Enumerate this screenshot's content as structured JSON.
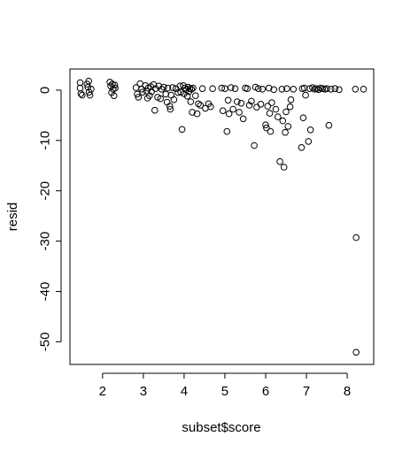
{
  "chart_data": {
    "type": "scatter",
    "title": "",
    "xlabel": "subset$score",
    "ylabel": "resid",
    "xticks": [
      2,
      3,
      4,
      5,
      6,
      7,
      8
    ],
    "yticks": [
      0,
      -10,
      -20,
      -30,
      -40,
      -50
    ],
    "xlim": [
      1.2,
      8.65
    ],
    "ylim": [
      -54.5,
      4.2
    ],
    "grid": false,
    "points": [
      [
        1.45,
        1.5
      ],
      [
        1.45,
        0.4
      ],
      [
        1.47,
        -0.7
      ],
      [
        1.5,
        -1.0
      ],
      [
        1.62,
        1.2
      ],
      [
        1.64,
        0.6
      ],
      [
        1.66,
        1.8
      ],
      [
        1.67,
        -0.4
      ],
      [
        1.69,
        -1.0
      ],
      [
        1.72,
        0.2
      ],
      [
        2.18,
        1.6
      ],
      [
        2.2,
        0.8
      ],
      [
        2.22,
        -0.5
      ],
      [
        2.24,
        1.2
      ],
      [
        2.26,
        0.2
      ],
      [
        2.28,
        -1.1
      ],
      [
        2.3,
        1.0
      ],
      [
        2.31,
        0.4
      ],
      [
        2.82,
        0.5
      ],
      [
        2.85,
        -0.8
      ],
      [
        2.88,
        -1.4
      ],
      [
        2.92,
        1.3
      ],
      [
        2.96,
        0.2
      ],
      [
        2.98,
        -0.4
      ],
      [
        3.05,
        0.9
      ],
      [
        3.08,
        -0.2
      ],
      [
        3.1,
        -1.6
      ],
      [
        3.12,
        0.4
      ],
      [
        3.15,
        -1.1
      ],
      [
        3.18,
        0.7
      ],
      [
        3.2,
        -0.3
      ],
      [
        3.25,
        1.1
      ],
      [
        3.28,
        -4.0
      ],
      [
        3.3,
        0.3
      ],
      [
        3.35,
        -1.4
      ],
      [
        3.38,
        0.8
      ],
      [
        3.42,
        -1.7
      ],
      [
        3.45,
        0.2
      ],
      [
        3.5,
        0.6
      ],
      [
        3.55,
        -0.8
      ],
      [
        3.58,
        -2.4
      ],
      [
        3.6,
        0.4
      ],
      [
        3.65,
        -3.2
      ],
      [
        3.66,
        -3.8
      ],
      [
        3.68,
        -1.0
      ],
      [
        3.72,
        0.5
      ],
      [
        3.75,
        -1.9
      ],
      [
        3.8,
        0.3
      ],
      [
        3.85,
        -0.5
      ],
      [
        3.9,
        0.8
      ],
      [
        3.92,
        -0.4
      ],
      [
        3.95,
        -7.8
      ],
      [
        3.98,
        0.9
      ],
      [
        4.0,
        -0.7
      ],
      [
        4.02,
        0.4
      ],
      [
        4.05,
        0.1
      ],
      [
        4.08,
        -1.2
      ],
      [
        4.1,
        0.6
      ],
      [
        4.12,
        -0.3
      ],
      [
        4.14,
        0.3
      ],
      [
        4.16,
        -2.3
      ],
      [
        4.18,
        0.2
      ],
      [
        4.2,
        -4.4
      ],
      [
        4.22,
        0.4
      ],
      [
        4.28,
        -1.1
      ],
      [
        4.32,
        -4.7
      ],
      [
        4.35,
        -2.7
      ],
      [
        4.4,
        -3.0
      ],
      [
        4.45,
        0.3
      ],
      [
        4.52,
        -3.6
      ],
      [
        4.6,
        -2.7
      ],
      [
        4.65,
        -3.3
      ],
      [
        4.7,
        0.3
      ],
      [
        4.92,
        0.4
      ],
      [
        4.95,
        -4.1
      ],
      [
        5.0,
        0.3
      ],
      [
        5.05,
        -8.2
      ],
      [
        5.08,
        -2.0
      ],
      [
        5.1,
        -4.7
      ],
      [
        5.15,
        0.5
      ],
      [
        5.2,
        -3.8
      ],
      [
        5.25,
        0.3
      ],
      [
        5.3,
        -2.3
      ],
      [
        5.35,
        -4.4
      ],
      [
        5.4,
        -2.6
      ],
      [
        5.45,
        -5.7
      ],
      [
        5.5,
        0.4
      ],
      [
        5.55,
        0.3
      ],
      [
        5.6,
        -3.0
      ],
      [
        5.65,
        -2.2
      ],
      [
        5.72,
        -11.0
      ],
      [
        5.75,
        0.6
      ],
      [
        5.78,
        -3.4
      ],
      [
        5.82,
        0.3
      ],
      [
        5.88,
        -2.8
      ],
      [
        5.92,
        0.2
      ],
      [
        6.0,
        -6.9
      ],
      [
        6.02,
        -7.5
      ],
      [
        6.05,
        -3.2
      ],
      [
        6.08,
        0.4
      ],
      [
        6.1,
        -4.6
      ],
      [
        6.12,
        -8.2
      ],
      [
        6.15,
        -2.5
      ],
      [
        6.2,
        0.1
      ],
      [
        6.25,
        -3.8
      ],
      [
        6.3,
        -5.3
      ],
      [
        6.35,
        -14.2
      ],
      [
        6.4,
        0.2
      ],
      [
        6.42,
        -6.1
      ],
      [
        6.45,
        -15.3
      ],
      [
        6.48,
        -8.4
      ],
      [
        6.5,
        -4.3
      ],
      [
        6.52,
        0.3
      ],
      [
        6.55,
        -7.2
      ],
      [
        6.6,
        -3.3
      ],
      [
        6.62,
        -1.9
      ],
      [
        6.68,
        0.2
      ],
      [
        6.88,
        -11.4
      ],
      [
        6.9,
        0.3
      ],
      [
        6.92,
        -5.5
      ],
      [
        6.95,
        0.4
      ],
      [
        6.98,
        -1.0
      ],
      [
        7.05,
        -10.2
      ],
      [
        7.08,
        0.3
      ],
      [
        7.1,
        -7.9
      ],
      [
        7.15,
        0.5
      ],
      [
        7.2,
        0.2
      ],
      [
        7.25,
        0.3
      ],
      [
        7.3,
        0.1
      ],
      [
        7.35,
        0.4
      ],
      [
        7.4,
        0.3
      ],
      [
        7.45,
        0.2
      ],
      [
        7.5,
        0.3
      ],
      [
        7.55,
        -7.0
      ],
      [
        7.6,
        0.2
      ],
      [
        7.7,
        0.3
      ],
      [
        7.8,
        0.1
      ],
      [
        8.2,
        0.2
      ],
      [
        8.22,
        -29.3
      ],
      [
        8.22,
        -52.1
      ],
      [
        8.4,
        0.2
      ]
    ]
  }
}
